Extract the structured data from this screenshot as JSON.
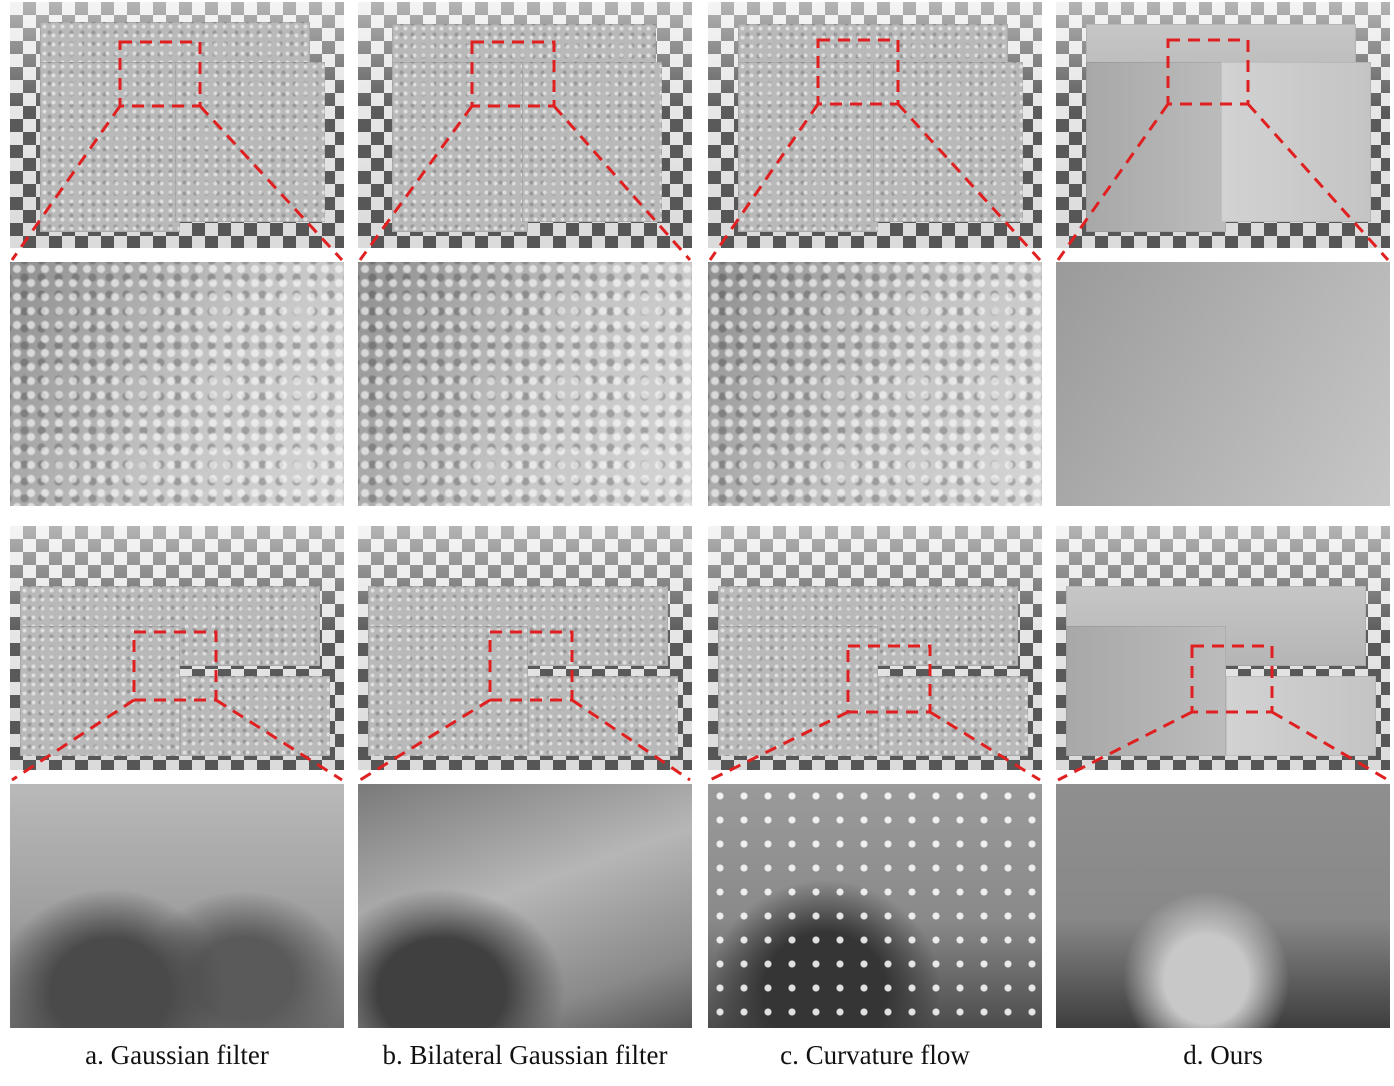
{
  "figure": {
    "columns": [
      {
        "id": "a",
        "caption": "a. Gaussian filter"
      },
      {
        "id": "b",
        "caption": "b. Bilateral Gaussian filter"
      },
      {
        "id": "c",
        "caption": "c. Curvature flow"
      },
      {
        "id": "d",
        "caption": "d. Ours"
      }
    ],
    "row_images": [
      "noisy-cube-render",
      "cube-corner-zoom",
      "cut-cube-render",
      "cut-cube-zoom"
    ],
    "highlight_color": "#e02020",
    "checkerboard_colors": [
      "#5a5a5a",
      "#e6e6e6"
    ]
  }
}
